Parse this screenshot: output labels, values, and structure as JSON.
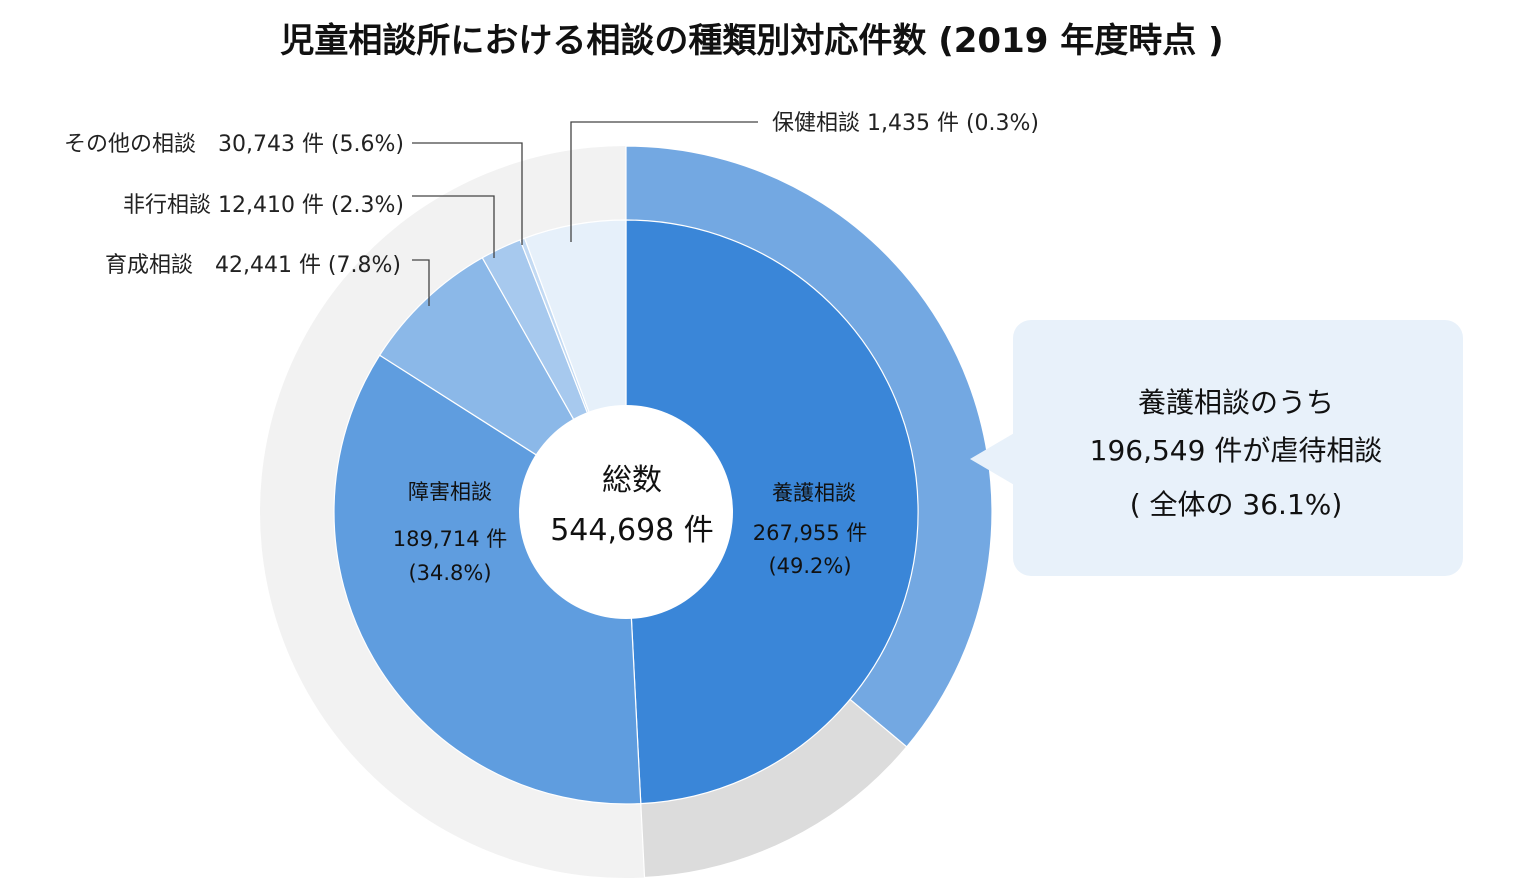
{
  "chart_data": {
    "type": "pie",
    "title": "児童相談所における相談の種類別対応件数 (2019 年度時点 )",
    "total": 544698,
    "center_label": "総数",
    "center_value": "544,698 件",
    "inner_segments": [
      {
        "name": "養護相談",
        "value": 267955,
        "percent": 49.2,
        "value_label": "267,955 件",
        "percent_label": "(49.2%)",
        "color": "#3a86d8"
      },
      {
        "name": "障害相談",
        "value": 189714,
        "percent": 34.8,
        "value_label": "189,714 件",
        "percent_label": "(34.8%)",
        "color": "#5f9ddf"
      },
      {
        "name": "育成相談",
        "value": 42441,
        "percent": 7.8,
        "label": "育成相談　42,441 件 (7.8%)",
        "color": "#8bb8e8"
      },
      {
        "name": "非行相談",
        "value": 12410,
        "percent": 2.3,
        "label": "非行相談 12,410 件 (2.3%)",
        "color": "#a7c9ee"
      },
      {
        "name": "保健相談",
        "value": 1435,
        "percent": 0.3,
        "label": "保健相談 1,435 件 (0.3%)",
        "color": "#c3daf3"
      },
      {
        "name": "その他の相談",
        "value": 30743,
        "percent": 5.6,
        "label": "その他の相談　30,743 件 (5.6%)",
        "color": "#e6f0fa"
      }
    ],
    "outer_ring": {
      "name": "虐待相談",
      "value": 196549,
      "percent_of_total": 36.1,
      "highlight_color": "#73a8e2",
      "remainder_color": "#dcdcdc",
      "background_color": "#f2f2f2"
    },
    "callout": {
      "line1": "養護相談のうち",
      "line2": "196,549 件が虐待相談",
      "line3": "( 全体の 36.1%)",
      "color": "#e8f1fa"
    }
  }
}
